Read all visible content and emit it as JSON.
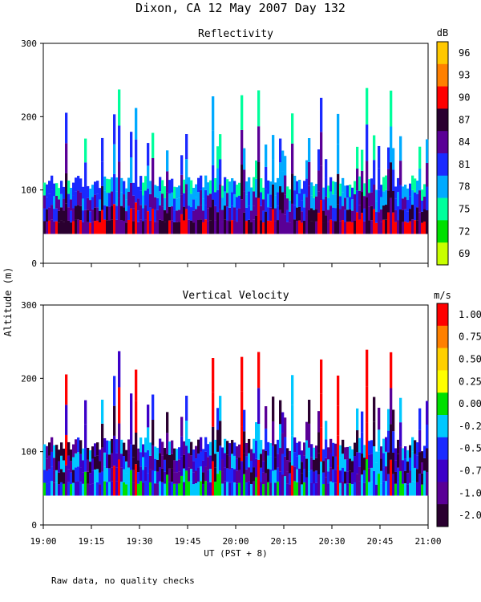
{
  "page": {
    "title": "Dixon, CA 12 May 2007  Day 132",
    "footnote": "Raw data, no quality checks"
  },
  "chart_data": [
    {
      "type": "heatmap",
      "title": "Reflectivity",
      "ylabel": "Altitude (m)",
      "xlabel": "UT  (PST + 8)",
      "x_range": [
        "19:00",
        "21:00"
      ],
      "x_ticks": [
        "19:00",
        "19:15",
        "19:30",
        "19:45",
        "20:00",
        "20:15",
        "20:30",
        "20:45",
        "21:00"
      ],
      "ylim": [
        0,
        300
      ],
      "y_ticks": [
        "0",
        "100",
        "200",
        "300"
      ],
      "data_floor_m": 40,
      "typical_top_m": 120,
      "peak_top_m": 240,
      "colorbar": {
        "unit": "dB",
        "labels": [
          "96",
          "93",
          "90",
          "87",
          "84",
          "81",
          "78",
          "75",
          "72",
          "69"
        ],
        "colors": [
          "#ffc800",
          "#ff8000",
          "#ff0000",
          "#2a0030",
          "#5a0096",
          "#1a2aff",
          "#00aaff",
          "#00ff9c",
          "#00e000",
          "#c8ff00"
        ]
      }
    },
    {
      "type": "heatmap",
      "title": "Vertical Velocity",
      "ylabel": "Altitude (m)",
      "xlabel": "UT  (PST + 8)",
      "x_range": [
        "19:00",
        "21:00"
      ],
      "x_ticks": [
        "19:00",
        "19:15",
        "19:30",
        "19:45",
        "20:00",
        "20:15",
        "20:30",
        "20:45",
        "21:00"
      ],
      "ylim": [
        0,
        300
      ],
      "y_ticks": [
        "0",
        "100",
        "200",
        "300"
      ],
      "data_floor_m": 40,
      "typical_top_m": 120,
      "peak_top_m": 240,
      "colorbar": {
        "unit": "m/s",
        "labels": [
          "1.00",
          "0.75",
          "0.50",
          "0.25",
          "0.00",
          "-0.25",
          "-0.50",
          "-0.75",
          "-1.00",
          "-2.00"
        ],
        "colors": [
          "#ff0000",
          "#ff8000",
          "#ffd000",
          "#ffff00",
          "#00e000",
          "#00c8ff",
          "#1a2aff",
          "#3c00c8",
          "#5a0096",
          "#2a0030"
        ]
      }
    }
  ]
}
